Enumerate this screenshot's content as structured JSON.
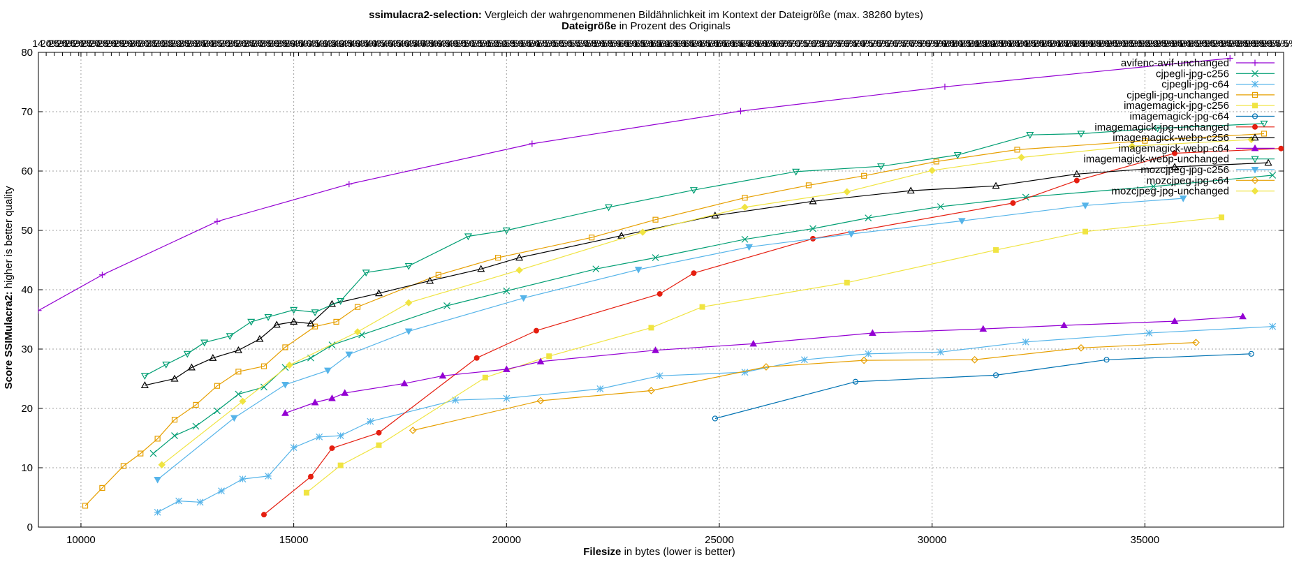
{
  "chart_data": {
    "type": "line",
    "title_bold": "ssimulacra2-selection:",
    "title_rest": " Vergleich der wahrgenommenen Bildähnlichkeit im Kontext der Dateigröße (max. 38260 bytes)",
    "subtitle_bold": "Dateigröße",
    "subtitle_rest": " in Prozent des Originals",
    "xlabel_bold": "Filesize",
    "xlabel_rest": " in bytes (lower is better)",
    "ylabel_bold": "Score SSIMulacra2:",
    "ylabel_rest": " higher is better quality",
    "xlim": [
      9000,
      38260
    ],
    "ylim": [
      0,
      80
    ],
    "x_ticks": [
      10000,
      15000,
      20000,
      25000,
      30000,
      35000
    ],
    "y_ticks": [
      0,
      10,
      20,
      30,
      40,
      50,
      60,
      70,
      80
    ],
    "top_axis_max": 38260,
    "top_axis_first_label": "14.0%",
    "top_axis_last_label": "57.5%",
    "grid": true,
    "legend_position": "top-right",
    "series": [
      {
        "name": "avifenc-avif-unchanged",
        "color": "#9400d3",
        "marker": "plus",
        "points": [
          [
            9000,
            36.5
          ],
          [
            10500,
            42.5
          ],
          [
            13200,
            51.5
          ],
          [
            16300,
            57.8
          ],
          [
            20600,
            64.6
          ],
          [
            25500,
            70.1
          ],
          [
            30300,
            74.2
          ],
          [
            37000,
            79.0
          ]
        ]
      },
      {
        "name": "cjpegli-jpg-c256",
        "color": "#009e73",
        "marker": "x",
        "points": [
          [
            11700,
            12.4
          ],
          [
            12200,
            15.4
          ],
          [
            12700,
            17.0
          ],
          [
            13200,
            19.6
          ],
          [
            13700,
            22.4
          ],
          [
            14300,
            23.6
          ],
          [
            14800,
            26.9
          ],
          [
            15400,
            28.5
          ],
          [
            15900,
            30.7
          ],
          [
            16600,
            32.4
          ],
          [
            18600,
            37.3
          ],
          [
            20000,
            39.8
          ],
          [
            22100,
            43.5
          ],
          [
            23500,
            45.4
          ],
          [
            25600,
            48.5
          ],
          [
            27200,
            50.3
          ],
          [
            28500,
            52.1
          ],
          [
            30200,
            54.0
          ],
          [
            32200,
            55.6
          ],
          [
            35200,
            57.4
          ],
          [
            38000,
            59.3
          ]
        ]
      },
      {
        "name": "cjpegli-jpg-c64",
        "color": "#56b4e9",
        "marker": "star",
        "points": [
          [
            11800,
            2.5
          ],
          [
            12300,
            4.4
          ],
          [
            12800,
            4.2
          ],
          [
            13300,
            6.1
          ],
          [
            13800,
            8.1
          ],
          [
            14400,
            8.6
          ],
          [
            15000,
            13.4
          ],
          [
            15600,
            15.2
          ],
          [
            16100,
            15.4
          ],
          [
            16800,
            17.8
          ],
          [
            18800,
            21.4
          ],
          [
            20000,
            21.7
          ],
          [
            22200,
            23.3
          ],
          [
            23600,
            25.5
          ],
          [
            25600,
            26.1
          ],
          [
            27000,
            28.2
          ],
          [
            28500,
            29.2
          ],
          [
            30200,
            29.5
          ],
          [
            32200,
            31.2
          ],
          [
            35100,
            32.7
          ],
          [
            38000,
            33.8
          ]
        ]
      },
      {
        "name": "cjpegli-jpg-unchanged",
        "color": "#e69f00",
        "marker": "square",
        "points": [
          [
            10100,
            3.6
          ],
          [
            10500,
            6.6
          ],
          [
            11000,
            10.3
          ],
          [
            11400,
            12.4
          ],
          [
            11800,
            14.9
          ],
          [
            12200,
            18.1
          ],
          [
            12700,
            20.6
          ],
          [
            13200,
            23.8
          ],
          [
            13700,
            26.2
          ],
          [
            14300,
            27.1
          ],
          [
            14800,
            30.3
          ],
          [
            15500,
            33.8
          ],
          [
            16000,
            34.6
          ],
          [
            16500,
            37.1
          ],
          [
            18400,
            42.5
          ],
          [
            19800,
            45.4
          ],
          [
            22000,
            48.8
          ],
          [
            23500,
            51.8
          ],
          [
            25600,
            55.5
          ],
          [
            27100,
            57.6
          ],
          [
            28400,
            59.2
          ],
          [
            30100,
            61.6
          ],
          [
            32000,
            63.6
          ],
          [
            35000,
            65.1
          ],
          [
            37800,
            66.3
          ]
        ]
      },
      {
        "name": "imagemagick-jpg-c256",
        "color": "#f0e442",
        "marker": "filled-square",
        "points": [
          [
            15300,
            5.8
          ],
          [
            16100,
            10.4
          ],
          [
            17000,
            13.8
          ],
          [
            19500,
            25.2
          ],
          [
            21000,
            28.8
          ],
          [
            23400,
            33.6
          ],
          [
            24600,
            37.1
          ],
          [
            28000,
            41.2
          ],
          [
            31500,
            46.7
          ],
          [
            33600,
            49.8
          ],
          [
            36800,
            52.2
          ]
        ]
      },
      {
        "name": "imagemagick-jpg-c64",
        "color": "#0072b2",
        "marker": "circle",
        "points": [
          [
            24900,
            18.3
          ],
          [
            28200,
            24.5
          ],
          [
            31500,
            25.6
          ],
          [
            34100,
            28.2
          ],
          [
            37500,
            29.2
          ]
        ]
      },
      {
        "name": "imagemagick-jpg-unchanged",
        "color": "#e51e10",
        "marker": "filled-circle",
        "points": [
          [
            14300,
            2.1
          ],
          [
            15400,
            8.5
          ],
          [
            15900,
            13.3
          ],
          [
            17000,
            15.9
          ],
          [
            19300,
            28.5
          ],
          [
            20700,
            33.1
          ],
          [
            23600,
            39.3
          ],
          [
            24400,
            42.8
          ],
          [
            27200,
            48.6
          ],
          [
            31900,
            54.6
          ],
          [
            33400,
            58.4
          ],
          [
            35700,
            63.0
          ],
          [
            38200,
            63.8
          ]
        ]
      },
      {
        "name": "imagemagick-webp-c256",
        "color": "#000000",
        "marker": "triangle",
        "points": [
          [
            11500,
            23.9
          ],
          [
            12200,
            25.0
          ],
          [
            12600,
            26.9
          ],
          [
            13100,
            28.5
          ],
          [
            13700,
            29.8
          ],
          [
            14200,
            31.7
          ],
          [
            14600,
            34.1
          ],
          [
            15000,
            34.6
          ],
          [
            15400,
            34.3
          ],
          [
            15900,
            37.6
          ],
          [
            17000,
            39.4
          ],
          [
            18200,
            41.5
          ],
          [
            19400,
            43.5
          ],
          [
            20300,
            45.4
          ],
          [
            22700,
            49.1
          ],
          [
            24900,
            52.5
          ],
          [
            27200,
            54.9
          ],
          [
            29500,
            56.7
          ],
          [
            31500,
            57.5
          ],
          [
            33400,
            59.5
          ],
          [
            35700,
            60.7
          ],
          [
            37900,
            61.4
          ]
        ]
      },
      {
        "name": "imagemagick-webp-c64",
        "color": "#9400d3",
        "marker": "filled-triangle",
        "points": [
          [
            14800,
            19.2
          ],
          [
            15500,
            21.0
          ],
          [
            15900,
            21.7
          ],
          [
            16200,
            22.6
          ],
          [
            17600,
            24.2
          ],
          [
            18500,
            25.5
          ],
          [
            20000,
            26.6
          ],
          [
            20800,
            27.9
          ],
          [
            23500,
            29.8
          ],
          [
            25800,
            30.9
          ],
          [
            28600,
            32.7
          ],
          [
            31200,
            33.4
          ],
          [
            33100,
            34.0
          ],
          [
            35700,
            34.7
          ],
          [
            37300,
            35.5
          ]
        ]
      },
      {
        "name": "imagemagick-webp-unchanged",
        "color": "#009e73",
        "marker": "triangle-down",
        "points": [
          [
            11500,
            25.5
          ],
          [
            12000,
            27.4
          ],
          [
            12500,
            29.2
          ],
          [
            12900,
            31.1
          ],
          [
            13500,
            32.2
          ],
          [
            14000,
            34.6
          ],
          [
            14400,
            35.4
          ],
          [
            15000,
            36.6
          ],
          [
            15500,
            36.2
          ],
          [
            16100,
            38.1
          ],
          [
            16700,
            42.9
          ],
          [
            17700,
            44.0
          ],
          [
            19100,
            49.0
          ],
          [
            20000,
            50.0
          ],
          [
            22400,
            53.9
          ],
          [
            24400,
            56.8
          ],
          [
            26800,
            59.9
          ],
          [
            28800,
            60.8
          ],
          [
            30600,
            62.7
          ],
          [
            32300,
            66.1
          ],
          [
            33500,
            66.3
          ],
          [
            35300,
            67.2
          ],
          [
            37800,
            68.0
          ]
        ]
      },
      {
        "name": "mozcjpeg-jpg-c256",
        "color": "#56b4e9",
        "marker": "filled-triangle-down",
        "points": [
          [
            11800,
            8.0
          ],
          [
            13600,
            18.4
          ],
          [
            14800,
            24.0
          ],
          [
            15800,
            26.4
          ],
          [
            16300,
            29.1
          ],
          [
            17700,
            33.0
          ],
          [
            20400,
            38.6
          ],
          [
            23100,
            43.4
          ],
          [
            25700,
            47.2
          ],
          [
            28100,
            49.4
          ],
          [
            30700,
            51.6
          ],
          [
            33600,
            54.2
          ],
          [
            35900,
            55.4
          ]
        ]
      },
      {
        "name": "mozcjpeg-jpg-c64",
        "color": "#e69f00",
        "marker": "diamond",
        "points": [
          [
            17800,
            16.3
          ],
          [
            20800,
            21.3
          ],
          [
            23400,
            23.0
          ],
          [
            26100,
            27.0
          ],
          [
            28400,
            28.1
          ],
          [
            31000,
            28.2
          ],
          [
            33500,
            30.2
          ],
          [
            36200,
            31.1
          ]
        ]
      },
      {
        "name": "mozcjpeg-jpg-unchanged",
        "color": "#f0e442",
        "marker": "filled-diamond",
        "points": [
          [
            11900,
            10.5
          ],
          [
            13800,
            21.2
          ],
          [
            14900,
            27.3
          ],
          [
            16500,
            32.9
          ],
          [
            17700,
            37.8
          ],
          [
            20300,
            43.3
          ],
          [
            23200,
            49.7
          ],
          [
            25600,
            53.9
          ],
          [
            28000,
            56.5
          ],
          [
            30000,
            60.1
          ],
          [
            32100,
            62.3
          ],
          [
            34700,
            64.2
          ],
          [
            37500,
            65.3
          ]
        ]
      }
    ]
  }
}
